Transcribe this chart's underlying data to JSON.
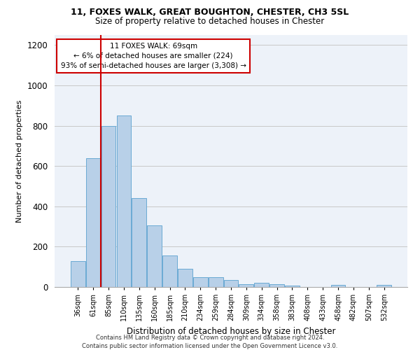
{
  "title1": "11, FOXES WALK, GREAT BOUGHTON, CHESTER, CH3 5SL",
  "title2": "Size of property relative to detached houses in Chester",
  "xlabel": "Distribution of detached houses by size in Chester",
  "ylabel": "Number of detached properties",
  "categories": [
    "36sqm",
    "61sqm",
    "85sqm",
    "110sqm",
    "135sqm",
    "160sqm",
    "185sqm",
    "210sqm",
    "234sqm",
    "259sqm",
    "284sqm",
    "309sqm",
    "334sqm",
    "358sqm",
    "383sqm",
    "408sqm",
    "433sqm",
    "458sqm",
    "482sqm",
    "507sqm",
    "532sqm"
  ],
  "values": [
    130,
    640,
    800,
    850,
    440,
    305,
    155,
    90,
    50,
    50,
    35,
    15,
    20,
    15,
    8,
    0,
    0,
    10,
    0,
    0,
    10
  ],
  "bar_color": "#b8d0e8",
  "bar_edge_color": "#6aaad4",
  "vline_x": 1.5,
  "vline_color": "#cc0000",
  "annotation_text": "11 FOXES WALK: 69sqm\n← 6% of detached houses are smaller (224)\n93% of semi-detached houses are larger (3,308) →",
  "annotation_box_color": "#ffffff",
  "annotation_box_edge_color": "#cc0000",
  "ylim": [
    0,
    1250
  ],
  "yticks": [
    0,
    200,
    400,
    600,
    800,
    1000,
    1200
  ],
  "footer": "Contains HM Land Registry data © Crown copyright and database right 2024.\nContains public sector information licensed under the Open Government Licence v3.0.",
  "grid_color": "#c8c8c8",
  "background_color": "#edf2f9"
}
